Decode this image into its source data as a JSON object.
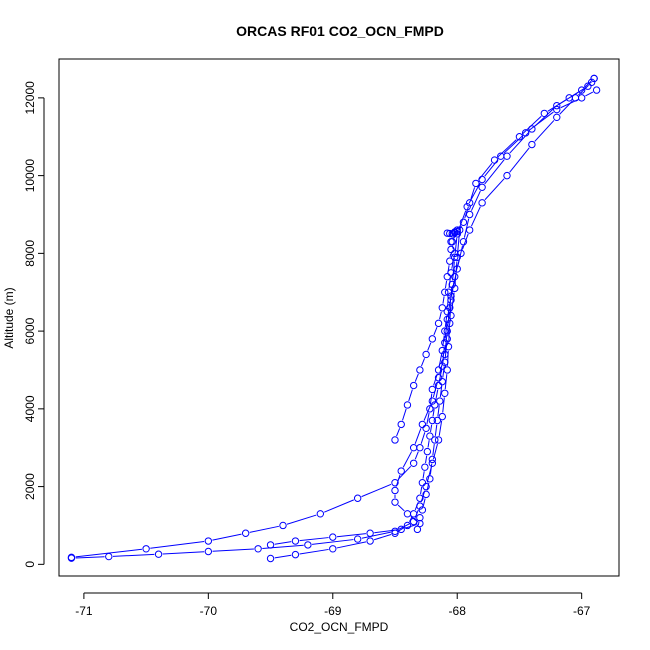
{
  "chart_data": {
    "type": "line",
    "title": "ORCAS RF01 CO2_OCN_FMPD",
    "xlabel": "CO2_OCN_FMPD",
    "ylabel": "Altitude (m)",
    "xlim": [
      -71.2,
      -66.7
    ],
    "ylim": [
      -300,
      13000
    ],
    "x_ticks": [
      -71,
      -70,
      -69,
      -68,
      -67
    ],
    "x_tick_labels": [
      "-71",
      "-70",
      "-69",
      "-68",
      "-67"
    ],
    "y_ticks": [
      0,
      2000,
      4000,
      6000,
      8000,
      10000,
      12000
    ],
    "y_tick_labels": [
      "0",
      "2000",
      "4000",
      "6000",
      "8000",
      "10000",
      "12000"
    ],
    "markers": "open-circle",
    "grid": false,
    "legend": "none",
    "colors": {
      "series": "#0000ff",
      "axis": "#000000"
    },
    "series": [
      {
        "x": [
          -66.9,
          -66.95,
          -67.1,
          -67.3,
          -67.5,
          -67.7,
          -67.85,
          -67.9,
          -67.95,
          -68.0,
          -68.05,
          -68.02,
          -68.05,
          -68.07,
          -68.08,
          -68.1,
          -68.12,
          -68.15,
          -68.2,
          -68.22,
          -68.25,
          -68.3,
          -68.35,
          -68.5,
          -68.8,
          -69.1,
          -69.4,
          -69.7,
          -70.0,
          -70.5,
          -71.1
        ],
        "y": [
          12500,
          12300,
          12000,
          11600,
          11000,
          10400,
          9800,
          9300,
          8800,
          8500,
          8300,
          8000,
          7500,
          7000,
          6500,
          6000,
          5500,
          5000,
          4500,
          4000,
          3500,
          3000,
          2600,
          2100,
          1700,
          1300,
          1000,
          800,
          600,
          400,
          180
        ]
      },
      {
        "x": [
          -71.1,
          -70.8,
          -70.4,
          -70.0,
          -69.6,
          -69.2,
          -68.8,
          -68.5,
          -68.35,
          -68.3,
          -68.25,
          -68.2,
          -68.15,
          -68.12,
          -68.1,
          -68.08,
          -68.07,
          -68.06,
          -68.05,
          -68.02,
          -67.97,
          -67.9,
          -67.8,
          -67.6,
          -67.4,
          -67.2,
          -67.05,
          -66.92
        ],
        "y": [
          160,
          200,
          260,
          330,
          400,
          500,
          650,
          850,
          1100,
          1500,
          2000,
          2600,
          3200,
          3800,
          4400,
          5000,
          5600,
          6200,
          6800,
          7400,
          8000,
          8600,
          9300,
          10000,
          10800,
          11500,
          12000,
          12400
        ]
      },
      {
        "x": [
          -66.88,
          -67.0,
          -67.2,
          -67.45,
          -67.65,
          -67.8,
          -67.92,
          -68.0,
          -68.02,
          -68.04,
          -68.06,
          -68.08,
          -68.1,
          -68.15,
          -68.2,
          -68.28,
          -68.35,
          -68.45,
          -68.5,
          -68.5,
          -68.4,
          -68.3,
          -68.45,
          -68.7,
          -69.0,
          -69.3,
          -69.5
        ],
        "y": [
          12200,
          12000,
          11700,
          11100,
          10500,
          9900,
          9200,
          8500,
          7900,
          7200,
          6600,
          6000,
          5400,
          4800,
          4200,
          3600,
          3000,
          2400,
          1900,
          1600,
          1300,
          1050,
          900,
          800,
          700,
          600,
          500
        ]
      },
      {
        "x": [
          -69.5,
          -69.3,
          -69.0,
          -68.7,
          -68.5,
          -68.4,
          -68.35,
          -68.3,
          -68.28,
          -68.26,
          -68.24,
          -68.22,
          -68.2,
          -68.18,
          -68.15,
          -68.12,
          -68.1,
          -68.08,
          -68.05,
          -68.0,
          -67.95,
          -67.9,
          -67.8,
          -67.6,
          -67.4,
          -67.2,
          -67.0,
          -66.9
        ],
        "y": [
          150,
          250,
          400,
          600,
          800,
          1000,
          1300,
          1700,
          2100,
          2500,
          2900,
          3300,
          3700,
          4100,
          4600,
          5100,
          5700,
          6300,
          6900,
          7600,
          8300,
          9000,
          9700,
          10500,
          11200,
          11800,
          12200,
          12500
        ]
      },
      {
        "x": [
          -68.5,
          -68.45,
          -68.4,
          -68.35,
          -68.3,
          -68.25,
          -68.2,
          -68.15,
          -68.12,
          -68.1,
          -68.08,
          -68.06,
          -68.05,
          -68.04,
          -68.03,
          -68.02,
          -68.0
        ],
        "y": [
          3200,
          3600,
          4100,
          4600,
          5000,
          5400,
          5800,
          6200,
          6600,
          7000,
          7400,
          7800,
          8100,
          8300,
          8500,
          8550,
          8600
        ]
      },
      {
        "x": [
          -68.08,
          -68.06,
          -68.04,
          -68.02,
          -68.0,
          -67.98,
          -68.0,
          -68.02,
          -68.05,
          -68.08,
          -68.1,
          -68.12,
          -68.14,
          -68.16,
          -68.18,
          -68.2,
          -68.22,
          -68.25,
          -68.28,
          -68.3,
          -68.32
        ],
        "y": [
          8520,
          8510,
          8500,
          8530,
          8560,
          8600,
          7900,
          7100,
          6400,
          5800,
          5200,
          4700,
          4200,
          3700,
          3200,
          2700,
          2200,
          1800,
          1400,
          1200,
          900
        ]
      }
    ]
  }
}
